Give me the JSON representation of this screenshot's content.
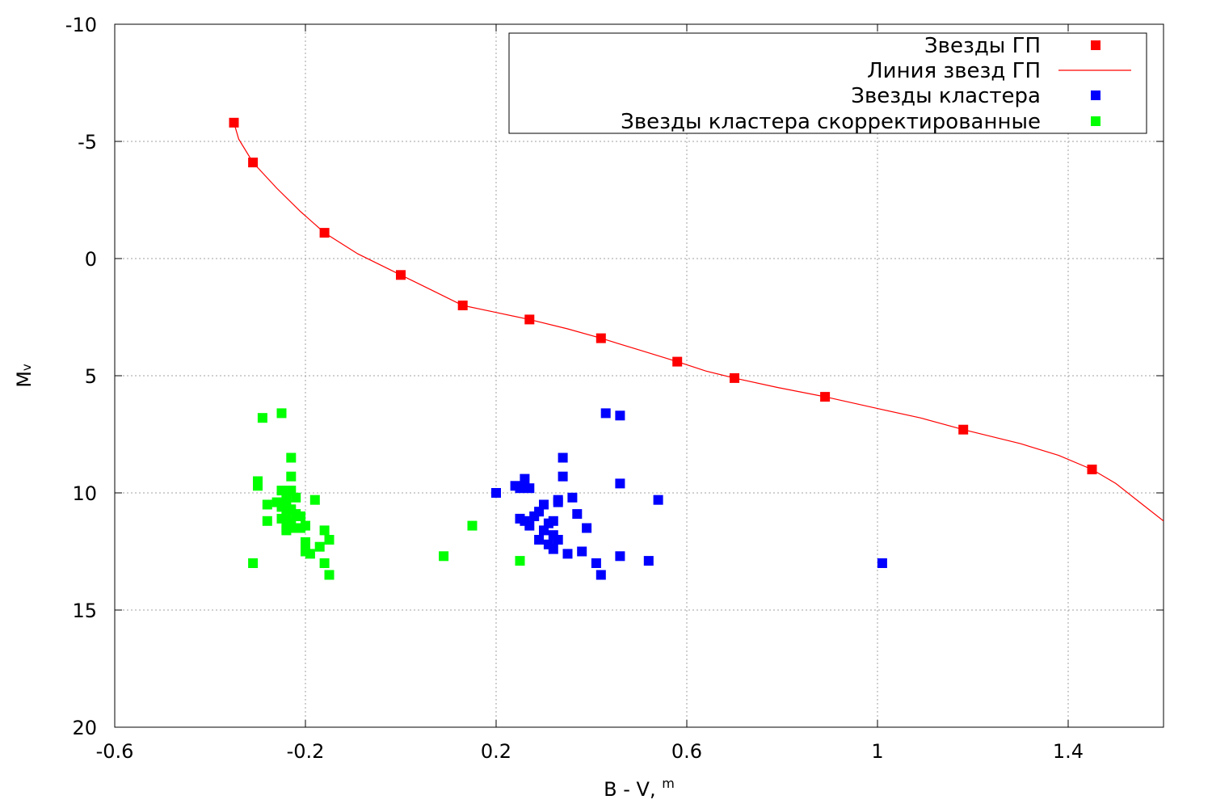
{
  "chart_data": {
    "type": "scatter",
    "xlabel": "B - V, ",
    "xlabel_sup": "m",
    "ylabel": "M",
    "ylabel_sub": "v",
    "xlim": [
      -0.6,
      1.6
    ],
    "ylim": [
      20,
      -10
    ],
    "y_inverted": true,
    "grid": true,
    "legend_position": "top-right",
    "xticks": [
      -0.6,
      -0.2,
      0.2,
      0.6,
      1,
      1.4
    ],
    "xtick_labels": [
      "-0.6",
      "-0.2",
      "0.2",
      "0.6",
      "1",
      "1.4"
    ],
    "yticks": [
      -10,
      -5,
      0,
      5,
      10,
      15,
      20
    ],
    "ytick_labels": [
      "-10",
      "-5",
      "0",
      "5",
      "10",
      "15",
      "20"
    ],
    "series": [
      {
        "name": "Звезды ГП",
        "kind": "points",
        "color": "#ff0000",
        "points": [
          [
            -0.35,
            -5.8
          ],
          [
            -0.31,
            -4.1
          ],
          [
            -0.16,
            -1.1
          ],
          [
            0.0,
            0.7
          ],
          [
            0.13,
            2.0
          ],
          [
            0.27,
            2.6
          ],
          [
            0.42,
            3.4
          ],
          [
            0.58,
            4.4
          ],
          [
            0.7,
            5.1
          ],
          [
            0.89,
            5.9
          ],
          [
            1.18,
            7.3
          ],
          [
            1.45,
            9.0
          ]
        ]
      },
      {
        "name": "Линия звезд ГП",
        "kind": "line",
        "color": "#ff0000",
        "points": [
          [
            -0.35,
            -5.8
          ],
          [
            -0.34,
            -5.1
          ],
          [
            -0.31,
            -4.1
          ],
          [
            -0.26,
            -3.0
          ],
          [
            -0.21,
            -2.0
          ],
          [
            -0.16,
            -1.1
          ],
          [
            -0.09,
            -0.2
          ],
          [
            0.0,
            0.7
          ],
          [
            0.07,
            1.4
          ],
          [
            0.13,
            2.0
          ],
          [
            0.2,
            2.3
          ],
          [
            0.27,
            2.6
          ],
          [
            0.35,
            3.0
          ],
          [
            0.42,
            3.4
          ],
          [
            0.5,
            3.9
          ],
          [
            0.58,
            4.4
          ],
          [
            0.64,
            4.8
          ],
          [
            0.7,
            5.1
          ],
          [
            0.79,
            5.5
          ],
          [
            0.89,
            5.9
          ],
          [
            1.0,
            6.4
          ],
          [
            1.09,
            6.8
          ],
          [
            1.18,
            7.3
          ],
          [
            1.3,
            7.9
          ],
          [
            1.38,
            8.4
          ],
          [
            1.45,
            9.0
          ],
          [
            1.5,
            9.6
          ],
          [
            1.55,
            10.4
          ],
          [
            1.6,
            11.2
          ]
        ]
      },
      {
        "name": "Звезды кластера",
        "kind": "points",
        "color": "#0000ff",
        "points": [
          [
            0.2,
            10.0
          ],
          [
            0.24,
            9.7
          ],
          [
            0.25,
            9.8
          ],
          [
            0.26,
            9.4
          ],
          [
            0.27,
            9.8
          ],
          [
            0.25,
            11.1
          ],
          [
            0.26,
            11.2
          ],
          [
            0.27,
            11.4
          ],
          [
            0.28,
            11.0
          ],
          [
            0.29,
            10.8
          ],
          [
            0.3,
            10.5
          ],
          [
            0.29,
            12.0
          ],
          [
            0.3,
            11.6
          ],
          [
            0.31,
            11.3
          ],
          [
            0.31,
            12.2
          ],
          [
            0.32,
            11.8
          ],
          [
            0.32,
            12.4
          ],
          [
            0.33,
            12.0
          ],
          [
            0.32,
            11.2
          ],
          [
            0.33,
            10.3
          ],
          [
            0.33,
            10.4
          ],
          [
            0.34,
            8.5
          ],
          [
            0.34,
            9.3
          ],
          [
            0.35,
            12.6
          ],
          [
            0.36,
            10.2
          ],
          [
            0.37,
            10.9
          ],
          [
            0.38,
            12.5
          ],
          [
            0.39,
            11.5
          ],
          [
            0.41,
            13.0
          ],
          [
            0.42,
            13.5
          ],
          [
            0.43,
            6.6
          ],
          [
            0.46,
            6.7
          ],
          [
            0.46,
            9.6
          ],
          [
            0.46,
            12.7
          ],
          [
            0.52,
            12.9
          ],
          [
            0.54,
            10.3
          ],
          [
            1.01,
            13.0
          ]
        ]
      },
      {
        "name": "Звезды кластера скорректированные",
        "kind": "points",
        "color": "#00ff00",
        "points": [
          [
            -0.29,
            6.8
          ],
          [
            -0.25,
            6.6
          ],
          [
            -0.23,
            8.5
          ],
          [
            -0.3,
            9.5
          ],
          [
            -0.3,
            9.7
          ],
          [
            -0.23,
            9.3
          ],
          [
            -0.25,
            9.9
          ],
          [
            -0.23,
            9.9
          ],
          [
            -0.22,
            10.2
          ],
          [
            -0.24,
            10.3
          ],
          [
            -0.26,
            10.4
          ],
          [
            -0.28,
            10.5
          ],
          [
            -0.25,
            10.6
          ],
          [
            -0.23,
            10.7
          ],
          [
            -0.24,
            10.9
          ],
          [
            -0.22,
            10.9
          ],
          [
            -0.21,
            11.0
          ],
          [
            -0.25,
            11.1
          ],
          [
            -0.28,
            11.2
          ],
          [
            -0.23,
            11.3
          ],
          [
            -0.24,
            11.5
          ],
          [
            -0.22,
            11.5
          ],
          [
            -0.21,
            11.5
          ],
          [
            -0.2,
            11.4
          ],
          [
            -0.24,
            11.6
          ],
          [
            -0.16,
            11.6
          ],
          [
            -0.15,
            12.0
          ],
          [
            -0.2,
            12.1
          ],
          [
            -0.17,
            12.3
          ],
          [
            -0.2,
            12.5
          ],
          [
            -0.19,
            12.6
          ],
          [
            -0.31,
            13.0
          ],
          [
            -0.16,
            13.0
          ],
          [
            -0.15,
            13.5
          ],
          [
            -0.18,
            10.3
          ],
          [
            0.09,
            12.7
          ],
          [
            0.15,
            11.4
          ],
          [
            0.25,
            12.9
          ]
        ]
      }
    ]
  }
}
